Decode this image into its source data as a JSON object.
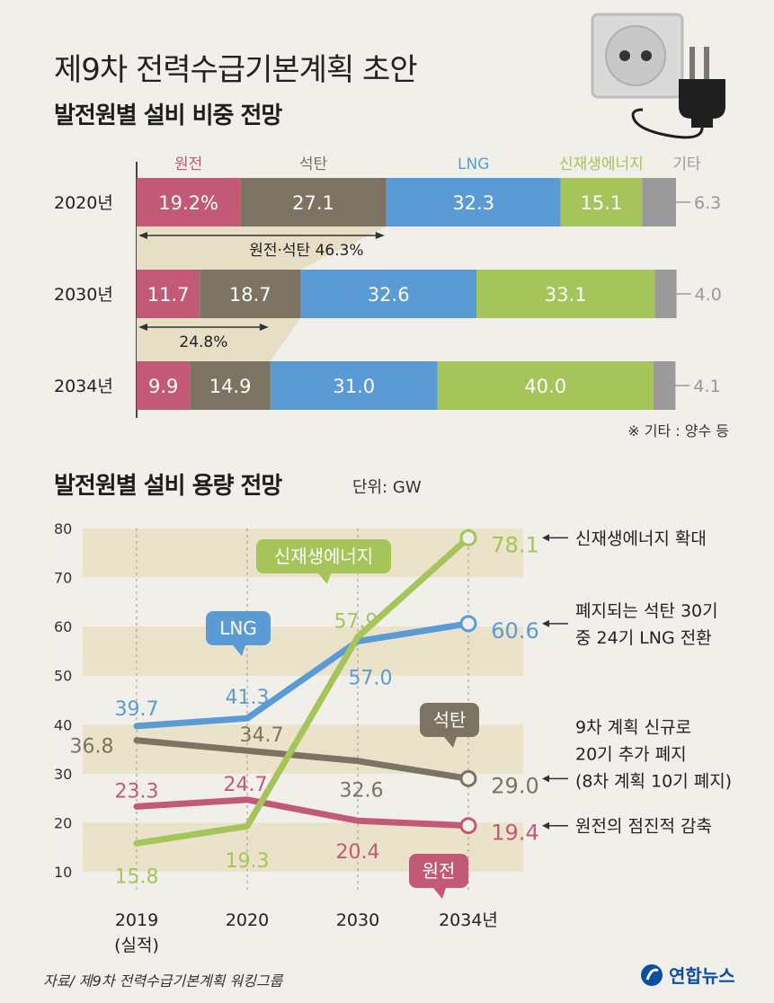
{
  "title": "제9차 전력수급기본계획 초안",
  "share_section": {
    "title": "발전원별 설비 비중 전망",
    "note": "※ 기타 : 양수 등",
    "annotation_2020": "원전·석탄 46.3%",
    "annotation_2034": "24.8%"
  },
  "capacity_section": {
    "title": "발전원별  설비 용량 전망",
    "unit": "단위: GW"
  },
  "source": "자료/ 제9차 전력수급기본계획 워킹그룹",
  "logo": "연합뉴스",
  "colors": {
    "nuclear": "#c25a77",
    "coal": "#7d7362",
    "lng": "#5b9bd5",
    "renewable": "#a5c45a",
    "other": "#9a9a9a",
    "band": "#ebe3c9"
  },
  "chart_data": [
    {
      "type": "bar",
      "stacked": true,
      "orientation": "horizontal",
      "categories": [
        "2020년",
        "2030년",
        "2034년"
      ],
      "series": [
        {
          "name": "원전",
          "values": [
            19.2,
            11.7,
            9.9
          ],
          "labels": [
            "19.2%",
            "11.7",
            "9.9"
          ]
        },
        {
          "name": "석탄",
          "values": [
            27.1,
            18.7,
            14.9
          ],
          "labels": [
            "27.1",
            "18.7",
            "14.9"
          ]
        },
        {
          "name": "LNG",
          "values": [
            32.3,
            32.6,
            31.0
          ],
          "labels": [
            "32.3",
            "32.6",
            "31.0"
          ]
        },
        {
          "name": "신재생에너지",
          "values": [
            15.1,
            33.1,
            40.0
          ],
          "labels": [
            "15.1",
            "33.1",
            "40.0"
          ]
        },
        {
          "name": "기타",
          "values": [
            6.3,
            4.0,
            4.1
          ],
          "labels": [
            "6.3",
            "4.0",
            "4.1"
          ]
        }
      ]
    },
    {
      "type": "line",
      "x": [
        "2019",
        "2020",
        "2030",
        "2034년"
      ],
      "x_sublabels": [
        "(실적)",
        "",
        "",
        ""
      ],
      "ylim": [
        10,
        80
      ],
      "yticks": [
        10,
        20,
        30,
        40,
        50,
        60,
        70,
        80
      ],
      "series": [
        {
          "name": "신재생에너지",
          "values": [
            15.8,
            19.3,
            57.9,
            78.1
          ],
          "labels": [
            "15.8",
            "19.3",
            "57.9",
            "78.1"
          ]
        },
        {
          "name": "LNG",
          "values": [
            39.7,
            41.3,
            57.0,
            60.6
          ],
          "labels": [
            "39.7",
            "41.3",
            "57.0",
            "60.6"
          ]
        },
        {
          "name": "석탄",
          "values": [
            36.8,
            34.7,
            32.6,
            29.0
          ],
          "labels": [
            "36.8",
            "34.7",
            "32.6",
            "29.0"
          ]
        },
        {
          "name": "원전",
          "values": [
            23.3,
            24.7,
            20.4,
            19.4
          ],
          "labels": [
            "23.3",
            "24.7",
            "20.4",
            "19.4"
          ]
        }
      ],
      "annotations": [
        {
          "series": "신재생에너지",
          "lines": [
            "신재생에너지 확대"
          ]
        },
        {
          "series": "LNG",
          "lines": [
            "폐지되는 석탄 30기",
            "중 24기 LNG 전환"
          ]
        },
        {
          "series": "석탄",
          "lines": [
            "9차 계획 신규로",
            "20기 추가 폐지",
            "(8차 계획 10기 폐지)"
          ]
        },
        {
          "series": "원전",
          "lines": [
            "원전의 점진적 감축"
          ]
        }
      ]
    }
  ]
}
